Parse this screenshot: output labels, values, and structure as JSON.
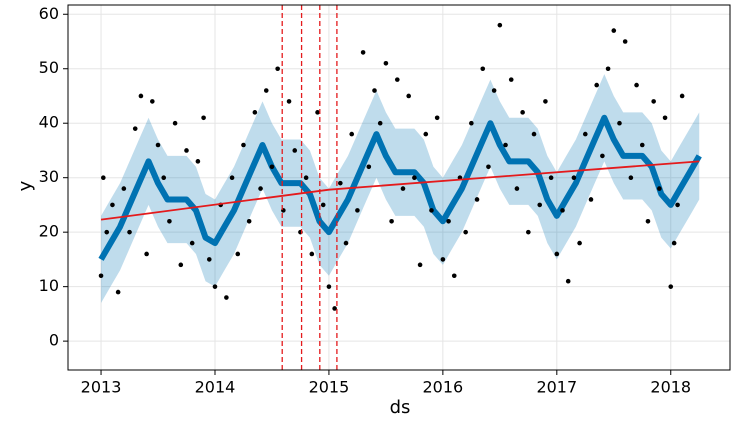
{
  "chart_data": {
    "type": "forecast",
    "xlabel": "ds",
    "ylabel": "y",
    "xlim": [
      2012.71,
      2018.52
    ],
    "ylim": [
      -5.3,
      61.7
    ],
    "xticks": [
      2013,
      2014,
      2015,
      2016,
      2017,
      2018
    ],
    "yticks": [
      0,
      10,
      20,
      30,
      40,
      50,
      60
    ],
    "grid": true,
    "points": {
      "color": "#000000",
      "x": [
        2013.0,
        2013.02,
        2013.05,
        2013.1,
        2013.15,
        2013.2,
        2013.25,
        2013.3,
        2013.35,
        2013.4,
        2013.45,
        2013.5,
        2013.55,
        2013.6,
        2013.65,
        2013.7,
        2013.75,
        2013.8,
        2013.85,
        2013.9,
        2013.95,
        2014.0,
        2014.05,
        2014.1,
        2014.15,
        2014.2,
        2014.25,
        2014.3,
        2014.35,
        2014.4,
        2014.45,
        2014.5,
        2014.55,
        2014.6,
        2014.65,
        2014.7,
        2014.75,
        2014.8,
        2014.85,
        2014.9,
        2014.95,
        2015.0,
        2015.05,
        2015.1,
        2015.15,
        2015.2,
        2015.25,
        2015.3,
        2015.35,
        2015.4,
        2015.45,
        2015.5,
        2015.55,
        2015.6,
        2015.65,
        2015.7,
        2015.75,
        2015.8,
        2015.85,
        2015.9,
        2015.95,
        2016.0,
        2016.05,
        2016.1,
        2016.15,
        2016.2,
        2016.25,
        2016.3,
        2016.35,
        2016.4,
        2016.45,
        2016.5,
        2016.55,
        2016.6,
        2016.65,
        2016.7,
        2016.75,
        2016.8,
        2016.85,
        2016.9,
        2016.95,
        2017.0,
        2017.05,
        2017.1,
        2017.15,
        2017.2,
        2017.25,
        2017.3,
        2017.35,
        2017.4,
        2017.45,
        2017.5,
        2017.55,
        2017.6,
        2017.65,
        2017.7,
        2017.75,
        2017.8,
        2017.85,
        2017.9,
        2017.95,
        2018.0,
        2018.03,
        2018.06,
        2018.1
      ],
      "y": [
        12,
        30,
        20,
        25,
        9,
        28,
        20,
        39,
        45,
        16,
        44,
        36,
        30,
        22,
        40,
        14,
        35,
        18,
        33,
        41,
        15,
        10,
        25,
        8,
        30,
        16,
        36,
        22,
        42,
        28,
        46,
        32,
        50,
        24,
        44,
        35,
        20,
        30,
        16,
        42,
        25,
        10,
        6,
        29,
        18,
        38,
        24,
        53,
        32,
        46,
        40,
        51,
        22,
        48,
        28,
        45,
        30,
        14,
        38,
        24,
        41,
        15,
        22,
        12,
        30,
        20,
        40,
        26,
        50,
        32,
        46,
        58,
        36,
        48,
        28,
        42,
        20,
        38,
        25,
        44,
        30,
        16,
        24,
        11,
        30,
        18,
        38,
        26,
        47,
        34,
        50,
        57,
        40,
        55,
        30,
        47,
        36,
        22,
        44,
        28,
        41,
        10,
        18,
        25,
        45
      ]
    },
    "forecast": {
      "color": "#0072b2",
      "x": [
        2013.0,
        2013.083,
        2013.167,
        2013.25,
        2013.333,
        2013.417,
        2013.5,
        2013.583,
        2013.667,
        2013.75,
        2013.833,
        2013.917,
        2014.0,
        2014.083,
        2014.167,
        2014.25,
        2014.333,
        2014.417,
        2014.5,
        2014.583,
        2014.667,
        2014.75,
        2014.833,
        2014.917,
        2015.0,
        2015.083,
        2015.167,
        2015.25,
        2015.333,
        2015.417,
        2015.5,
        2015.583,
        2015.667,
        2015.75,
        2015.833,
        2015.917,
        2016.0,
        2016.083,
        2016.167,
        2016.25,
        2016.333,
        2016.417,
        2016.5,
        2016.583,
        2016.667,
        2016.75,
        2016.833,
        2016.917,
        2017.0,
        2017.083,
        2017.167,
        2017.25,
        2017.333,
        2017.417,
        2017.5,
        2017.583,
        2017.667,
        2017.75,
        2017.833,
        2017.917,
        2018.0,
        2018.083,
        2018.167,
        2018.25
      ],
      "yhat": [
        15,
        18,
        21,
        25,
        29,
        33,
        29,
        26,
        26,
        26,
        24,
        19,
        18,
        21,
        24,
        28,
        32,
        36,
        32,
        29,
        29,
        29,
        27,
        22,
        20,
        23,
        26,
        30,
        34,
        38,
        34,
        31,
        31,
        31,
        29,
        24,
        22,
        25,
        28,
        32,
        36,
        40,
        36,
        33,
        33,
        33,
        31,
        26,
        23,
        26,
        29,
        33,
        37,
        41,
        37,
        34,
        34,
        34,
        32,
        27,
        25,
        28,
        31,
        34
      ],
      "yhat_lower": [
        7,
        10,
        13,
        17,
        21,
        25,
        21,
        18,
        18,
        18,
        16,
        11,
        10,
        13,
        16,
        20,
        24,
        28,
        24,
        21,
        21,
        21,
        19,
        14,
        12,
        15,
        18,
        22,
        26,
        30,
        26,
        23,
        23,
        23,
        21,
        16,
        14,
        17,
        20,
        24,
        28,
        32,
        28,
        25,
        25,
        25,
        23,
        18,
        15,
        18,
        21,
        25,
        29,
        33,
        29,
        26,
        26,
        26,
        24,
        19,
        17,
        20,
        23,
        26
      ],
      "yhat_upper": [
        23,
        26,
        29,
        33,
        37,
        41,
        37,
        34,
        34,
        34,
        32,
        27,
        26,
        29,
        32,
        36,
        40,
        44,
        40,
        37,
        37,
        37,
        35,
        30,
        28,
        31,
        34,
        38,
        42,
        46,
        42,
        39,
        39,
        39,
        37,
        32,
        30,
        33,
        36,
        40,
        44,
        48,
        44,
        41,
        41,
        41,
        39,
        34,
        31,
        34,
        37,
        41,
        45,
        49,
        45,
        42,
        42,
        42,
        40,
        35,
        33,
        36,
        39,
        42
      ]
    },
    "trend": {
      "color": "#e41a1c",
      "x": [
        2013.0,
        2015.0,
        2018.25
      ],
      "y": [
        22.3,
        27.8,
        33.0
      ]
    },
    "changepoints": {
      "color": "#e41a1c",
      "x": [
        2014.59,
        2014.76,
        2014.92,
        2015.07
      ]
    }
  }
}
